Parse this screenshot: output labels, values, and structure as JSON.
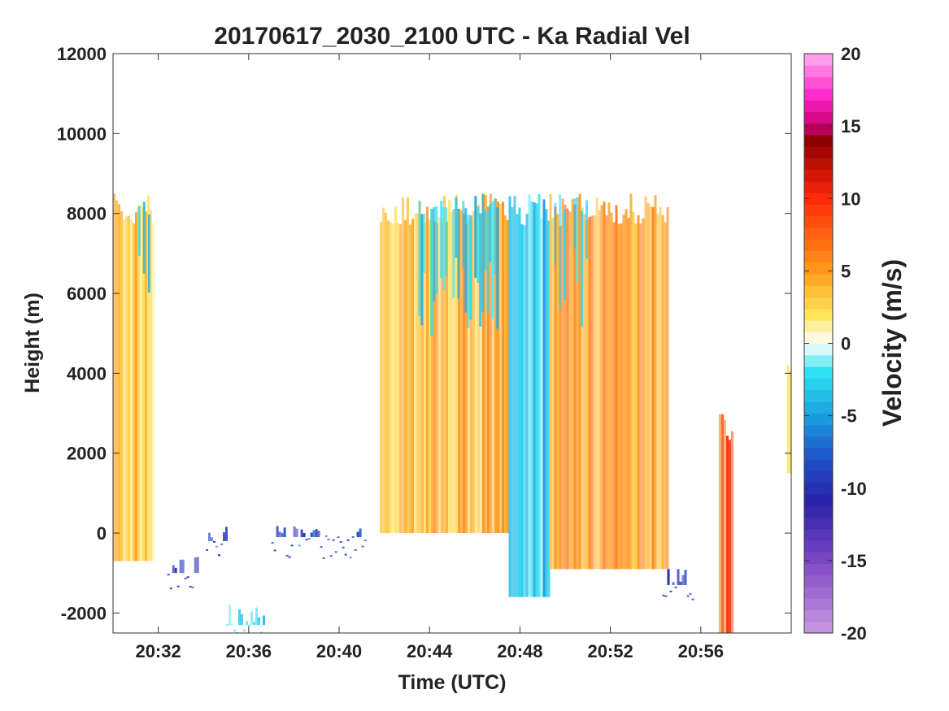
{
  "chart_data": {
    "type": "heatmap",
    "title": "20170617_2030_2100 UTC - Ka Radial Vel",
    "xlabel": "Time (UTC)",
    "ylabel": "Height (m)",
    "colorbar_label": "Velocity (m/s)",
    "x_range": [
      "20:30",
      "21:00"
    ],
    "ylim": [
      -2500,
      12000
    ],
    "clim": [
      -20,
      20
    ],
    "x_ticks": [
      "20:32",
      "20:36",
      "20:40",
      "20:44",
      "20:48",
      "20:52",
      "20:56"
    ],
    "y_ticks": [
      -2000,
      0,
      2000,
      4000,
      6000,
      8000,
      10000,
      12000
    ],
    "colorbar_ticks": [
      -20,
      -15,
      -10,
      -5,
      0,
      5,
      10,
      15,
      20
    ],
    "grid": false,
    "colormap_stops": [
      {
        "v": -20,
        "color": "#c89be0"
      },
      {
        "v": -15,
        "color": "#7e47c5"
      },
      {
        "v": -11,
        "color": "#2a22a8"
      },
      {
        "v": -8,
        "color": "#1f4fc8"
      },
      {
        "v": -5,
        "color": "#1a9fe0"
      },
      {
        "v": -2,
        "color": "#2fe0f2"
      },
      {
        "v": 0,
        "color": "#ffffff"
      },
      {
        "v": 2,
        "color": "#ffe45a"
      },
      {
        "v": 5,
        "color": "#ff9a1a"
      },
      {
        "v": 10,
        "color": "#ff2a0a"
      },
      {
        "v": 14,
        "color": "#8e0000"
      },
      {
        "v": 15,
        "color": "#c4006e"
      },
      {
        "v": 17,
        "color": "#ff22c8"
      },
      {
        "v": 20,
        "color": "#ffb0f0"
      }
    ],
    "segments": [
      {
        "t0": "20:30",
        "t1": "20:31.8",
        "h0": -700,
        "h1": 8500,
        "v": 3,
        "tops": [
          {
            "t0": "20:31",
            "t1": "20:31.6",
            "h0": 6000,
            "h1": 8500,
            "v": -4
          }
        ]
      },
      {
        "t0": "20:32.4",
        "t1": "20:33.7",
        "h0": -1000,
        "h1": -600,
        "v": -10
      },
      {
        "t0": "20:34.1",
        "t1": "20:35",
        "h0": -200,
        "h1": 200,
        "v": -10
      },
      {
        "t0": "20:35",
        "t1": "20:36.7",
        "h0": -2300,
        "h1": -1700,
        "v": -3
      },
      {
        "t0": "20:37",
        "t1": "20:41.2",
        "h0": -100,
        "h1": 200,
        "v": -9
      },
      {
        "t0": "20:41.8",
        "t1": "20:47.5",
        "h0": 0,
        "h1": 8500,
        "v": 4,
        "tops": [
          {
            "t0": "20:43.5",
            "t1": "20:47",
            "h0": 5000,
            "h1": 8500,
            "v": -3
          }
        ]
      },
      {
        "t0": "20:47.5",
        "t1": "20:49.3",
        "h0": -1600,
        "h1": 8500,
        "v": -3
      },
      {
        "t0": "20:49.3",
        "t1": "20:54.5",
        "h0": -900,
        "h1": 8500,
        "v": 5,
        "tops": [
          {
            "t0": "20:49.5",
            "t1": "20:51",
            "h0": 5500,
            "h1": 8500,
            "v": -3
          }
        ]
      },
      {
        "t0": "20:54.3",
        "t1": "20:55.6",
        "h0": -1300,
        "h1": -900,
        "v": -10
      },
      {
        "t0": "20:56.8",
        "t1": "20:57.4",
        "h0": -2500,
        "h1": 3000,
        "v": 8
      },
      {
        "t0": "20:59.8",
        "t1": "21:00",
        "h0": 1500,
        "h1": 4500,
        "v": 2
      }
    ]
  }
}
